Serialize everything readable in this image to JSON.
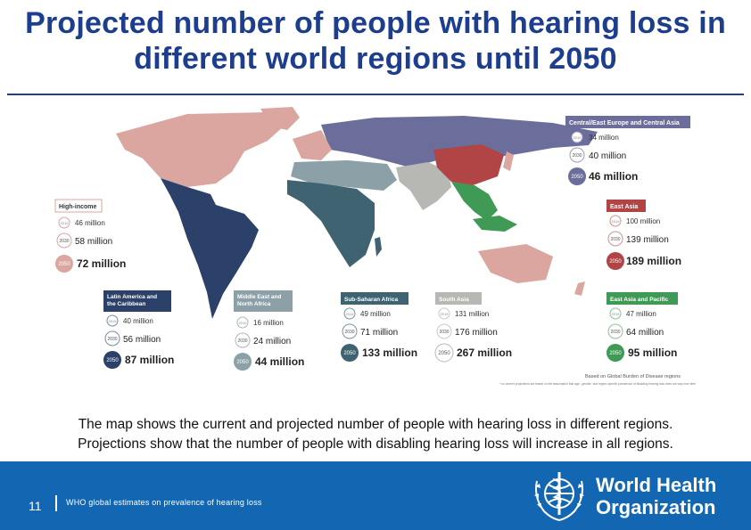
{
  "slide": {
    "title": "Projected number of people with hearing loss in different world regions until 2050",
    "caption_line1": "The map shows the current and projected number of people with hearing loss in different regions.",
    "caption_line2": "Projections show that the number of people with disabling hearing loss will increase in all regions.",
    "slide_number": "11",
    "footer_text": "WHO global estimates on prevalence of hearing loss",
    "org_name_line1": "World Health",
    "org_name_line2": "Organization"
  },
  "regions": [
    {
      "id": "central-east-europe",
      "name": "Central/East Europe and Central Asia",
      "color": "#6b6d9a",
      "stats": [
        {
          "year": "2019",
          "value": "34 million"
        },
        {
          "year": "2030",
          "value": "40 million"
        },
        {
          "year": "2050",
          "value": "46 million"
        }
      ]
    },
    {
      "id": "east-asia",
      "name": "East Asia",
      "color": "#b14545",
      "stats": [
        {
          "year": "2019",
          "value": "100 million"
        },
        {
          "year": "2030",
          "value": "139 million"
        },
        {
          "year": "2050",
          "value": "189 million"
        }
      ]
    },
    {
      "id": "high-income",
      "name": "High-income",
      "color": "#dba5a0",
      "stats": [
        {
          "year": "2019",
          "value": "46 million"
        },
        {
          "year": "2030",
          "value": "58 million"
        },
        {
          "year": "2050",
          "value": "72 million"
        }
      ]
    },
    {
      "id": "latin-america",
      "name": "Latin America and the Caribbean",
      "color": "#2b4169",
      "stats": [
        {
          "year": "2019",
          "value": "40 million"
        },
        {
          "year": "2030",
          "value": "56 million"
        },
        {
          "year": "2050",
          "value": "87 million"
        }
      ]
    },
    {
      "id": "middle-east",
      "name": "Middle East and North Africa",
      "color": "#8ca0a8",
      "stats": [
        {
          "year": "2019",
          "value": "16 million"
        },
        {
          "year": "2030",
          "value": "24 million"
        },
        {
          "year": "2050",
          "value": "44 million"
        }
      ]
    },
    {
      "id": "sub-saharan",
      "name": "Sub-Saharan Africa",
      "color": "#3f6371",
      "stats": [
        {
          "year": "2019",
          "value": "49 million"
        },
        {
          "year": "2030",
          "value": "71 million"
        },
        {
          "year": "2050",
          "value": "133 million"
        }
      ]
    },
    {
      "id": "south-asia",
      "name": "South Asia",
      "color": "#b7b7b3",
      "stats": [
        {
          "year": "2019",
          "value": "131 million"
        },
        {
          "year": "2030",
          "value": "176 million"
        },
        {
          "year": "2050",
          "value": "267 million"
        }
      ]
    },
    {
      "id": "east-asia-pacific",
      "name": "East Asia and Pacific",
      "color": "#3f9a55",
      "stats": [
        {
          "year": "2019",
          "value": "47 million"
        },
        {
          "year": "2030",
          "value": "64 million"
        },
        {
          "year": "2050",
          "value": "95 million"
        }
      ]
    }
  ],
  "source_note": "Based on Global Burden of Disease regions",
  "footnote": "* no current projections are based on the assumption that age-, gender- and region-specific prevalence of disabling hearing loss does not vary over time"
}
